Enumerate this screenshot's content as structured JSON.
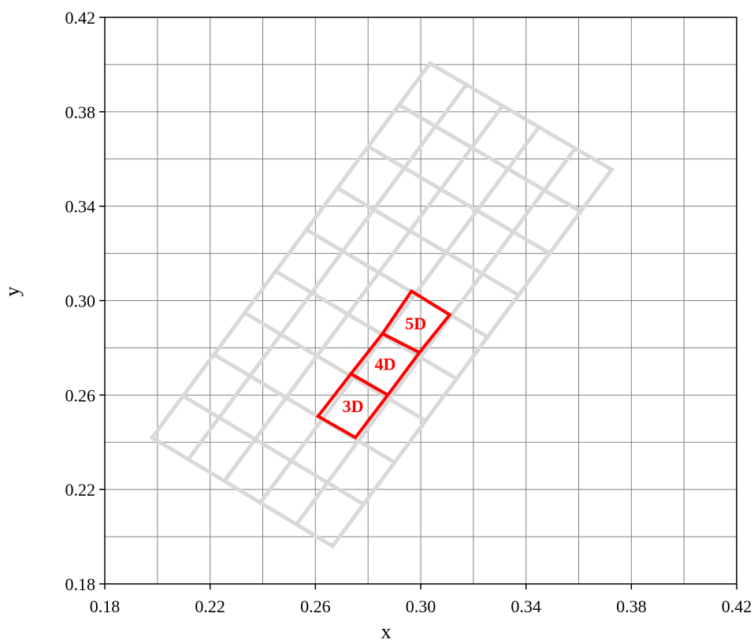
{
  "chart_data": {
    "type": "scatter",
    "title": "",
    "xlabel": "x",
    "ylabel": "y",
    "xlim": [
      0.18,
      0.42
    ],
    "ylim": [
      0.18,
      0.42
    ],
    "x_ticks": [
      "0.18",
      "0.22",
      "0.26",
      "0.30",
      "0.34",
      "0.38",
      "0.42"
    ],
    "y_ticks": [
      "0.18",
      "0.22",
      "0.26",
      "0.30",
      "0.34",
      "0.38",
      "0.42"
    ],
    "x_minor_step": 0.02,
    "y_minor_step": 0.02,
    "grid": true,
    "grid_color": "#808080",
    "background_color": "#ffffff",
    "grid_series": {
      "color": "#d9d9d9",
      "corners": {
        "A": [
          0.198,
          0.242
        ],
        "B": [
          0.2665,
          0.196
        ],
        "C": [
          0.3725,
          0.3555
        ],
        "D": [
          0.3035,
          0.4005
        ]
      },
      "short_divisions": 5,
      "long_divisions": 9
    },
    "highlighted_bins": {
      "color": "#ff0000",
      "cells": [
        {
          "label": "3D",
          "corners": [
            [
              0.261,
              0.251
            ],
            [
              0.2752,
              0.242
            ],
            [
              0.2875,
              0.26
            ],
            [
              0.2735,
              0.269
            ]
          ]
        },
        {
          "label": "4D",
          "corners": [
            [
              0.2735,
              0.269
            ],
            [
              0.2875,
              0.26
            ],
            [
              0.2995,
              0.278
            ],
            [
              0.2855,
              0.286
            ]
          ]
        },
        {
          "label": "5D",
          "corners": [
            [
              0.2855,
              0.286
            ],
            [
              0.2995,
              0.278
            ],
            [
              0.311,
              0.294
            ],
            [
              0.2965,
              0.304
            ]
          ]
        }
      ]
    }
  }
}
